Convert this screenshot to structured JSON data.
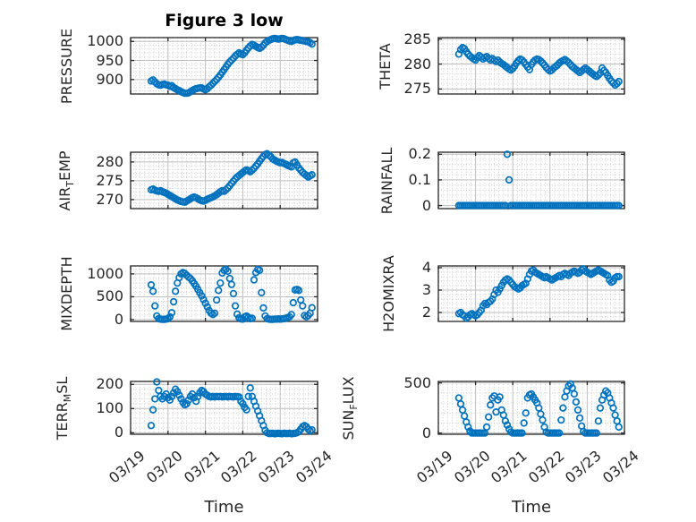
{
  "figure": {
    "title": "Figure 3 low",
    "xlabel": "Time",
    "xtick_labels": [
      "03/19",
      "03/20",
      "03/21",
      "03/22",
      "03/23",
      "03/24"
    ],
    "xlim_days": [
      0,
      5
    ],
    "marker": "o",
    "marker_color": "#0072BD",
    "axis_color": "#262626",
    "grid": "on",
    "minor_grid": "dotted"
  },
  "chart_data": [
    {
      "type": "scatter",
      "name": "PRESSURE",
      "ylabel": {
        "pre": "PRESSURE",
        "sub": "",
        "post": ""
      },
      "yticks": [
        900,
        950,
        1000
      ],
      "ylim": [
        862,
        1010
      ],
      "yminor": 10,
      "x_start_day": 0.55,
      "x_step_day": 0.05,
      "values": [
        896,
        899,
        894,
        889,
        886,
        885,
        887,
        888,
        886,
        885,
        882,
        884,
        879,
        876,
        873,
        871,
        868,
        866,
        864,
        864,
        865,
        868,
        871,
        874,
        876,
        877,
        878,
        878,
        875,
        873,
        876,
        881,
        885,
        890,
        895,
        900,
        906,
        912,
        919,
        926,
        933,
        940,
        946,
        951,
        956,
        962,
        966,
        970,
        967,
        965,
        970,
        977,
        983,
        988,
        992,
        990,
        987,
        984,
        982,
        985,
        990,
        996,
        1000,
        1003,
        1005,
        1007,
        1008,
        1007,
        1006,
        1007,
        1008,
        1007,
        1005,
        1003,
        1001,
        1000,
        1002,
        1004,
        1005,
        1004,
        1003,
        1002,
        1001,
        1000,
        999,
        997,
        993
      ]
    },
    {
      "type": "scatter",
      "name": "THETA",
      "ylabel": {
        "pre": "THETA",
        "sub": "",
        "post": ""
      },
      "yticks": [
        275,
        280,
        285
      ],
      "ylim": [
        274,
        285.3
      ],
      "yminor": 1,
      "x_start_day": 0.55,
      "x_step_day": 0.05,
      "values": [
        282.0,
        282.9,
        283.3,
        283.1,
        282.5,
        282.0,
        281.6,
        281.3,
        281.0,
        280.8,
        281.3,
        281.7,
        281.4,
        281.0,
        281.3,
        281.5,
        281.1,
        280.8,
        281.1,
        280.8,
        280.5,
        280.8,
        280.4,
        280.1,
        279.9,
        279.6,
        279.3,
        279.0,
        278.8,
        279.1,
        279.6,
        280.2,
        280.7,
        281.0,
        280.8,
        280.4,
        279.9,
        279.4,
        278.9,
        279.9,
        280.4,
        280.8,
        281.0,
        280.9,
        280.6,
        280.2,
        279.8,
        279.3,
        278.9,
        278.6,
        278.8,
        279.2,
        279.5,
        279.8,
        280.2,
        280.5,
        280.7,
        280.9,
        280.6,
        280.3,
        279.9,
        279.5,
        279.2,
        278.9,
        278.6,
        278.3,
        278.6,
        278.9,
        279.2,
        278.9,
        278.6,
        278.3,
        278.0,
        277.7,
        277.5,
        277.8,
        278.2,
        279.2,
        278.7,
        278.3,
        277.7,
        277.1,
        276.6,
        276.2,
        275.8,
        276.1,
        276.5
      ]
    },
    {
      "type": "scatter",
      "name": "AIR_TEMP",
      "ylabel": {
        "pre": "AIR",
        "sub": "T",
        "post": "EMP"
      },
      "yticks": [
        270,
        275,
        280
      ],
      "ylim": [
        267.6,
        282.6
      ],
      "yminor": 1,
      "x_start_day": 0.55,
      "x_step_day": 0.05,
      "values": [
        272.6,
        272.8,
        272.5,
        272.3,
        272.2,
        272.4,
        272.1,
        271.9,
        271.7,
        271.4,
        271.1,
        270.8,
        270.5,
        270.2,
        269.9,
        269.7,
        269.5,
        269.4,
        269.3,
        269.6,
        269.9,
        270.2,
        270.5,
        270.7,
        270.5,
        270.2,
        269.9,
        269.7,
        269.6,
        269.8,
        270.1,
        270.3,
        270.5,
        270.7,
        271.0,
        271.3,
        271.7,
        272.1,
        272.4,
        272.2,
        272.6,
        273.1,
        273.7,
        274.3,
        274.9,
        275.5,
        276.0,
        276.4,
        276.8,
        277.2,
        277.6,
        277.9,
        277.7,
        277.4,
        277.8,
        278.3,
        278.9,
        279.5,
        280.2,
        280.9,
        281.5,
        282.0,
        282.2,
        281.8,
        281.4,
        280.8,
        280.5,
        280.2,
        280.0,
        279.8,
        279.9,
        279.6,
        279.4,
        279.1,
        278.9,
        278.7,
        279.8,
        280.0,
        279.2,
        278.4,
        277.8,
        277.2,
        276.8,
        276.4,
        276.0,
        276.3,
        276.6
      ]
    },
    {
      "type": "scatter",
      "name": "RAINFALL",
      "ylabel": {
        "pre": "RAINFALL",
        "sub": "",
        "post": ""
      },
      "yticks": [
        0,
        0.1,
        0.2
      ],
      "ylim": [
        -0.012,
        0.208
      ],
      "yminor": 0.02,
      "x_start_day": 0.55,
      "x_step_day": 0.05,
      "values": [
        0,
        0,
        0,
        0,
        0,
        0,
        0,
        0,
        0,
        0,
        0,
        0,
        0,
        0,
        0,
        0,
        0,
        0,
        0,
        0,
        0,
        0,
        0,
        0,
        0,
        0,
        0.2,
        0.1,
        0,
        0,
        0,
        0,
        0,
        0,
        0,
        0,
        0,
        0,
        0,
        0,
        0,
        0,
        0,
        0,
        0,
        0,
        0,
        0,
        0,
        0,
        0,
        0,
        0,
        0,
        0,
        0,
        0,
        0,
        0,
        0,
        0,
        0,
        0,
        0,
        0,
        0,
        0,
        0,
        0,
        0,
        0,
        0,
        0,
        0,
        0,
        0,
        0,
        0,
        0,
        0,
        0,
        0,
        0,
        0,
        0,
        0,
        0
      ]
    },
    {
      "type": "scatter",
      "name": "MIXDEPTH",
      "ylabel": {
        "pre": "MIXDEPTH",
        "sub": "",
        "post": ""
      },
      "yticks": [
        0,
        500,
        1000
      ],
      "ylim": [
        -40,
        1175
      ],
      "yminor": 100,
      "x_start_day": 0.55,
      "x_step_day": 0.05,
      "values": [
        760,
        620,
        300,
        80,
        20,
        10,
        5,
        5,
        10,
        20,
        60,
        150,
        390,
        620,
        800,
        920,
        1000,
        1030,
        1010,
        970,
        930,
        900,
        850,
        790,
        730,
        660,
        590,
        520,
        440,
        360,
        280,
        200,
        140,
        110,
        140,
        430,
        640,
        800,
        1020,
        1080,
        1100,
        1060,
        900,
        770,
        570,
        300,
        120,
        40,
        15,
        10,
        60,
        80,
        50,
        20,
        30,
        870,
        1030,
        1100,
        1080,
        590,
        255,
        80,
        20,
        10,
        5,
        5,
        10,
        10,
        15,
        10,
        15,
        20,
        30,
        45,
        60,
        110,
        370,
        650,
        660,
        640,
        430,
        300,
        90,
        60,
        90,
        140,
        260
      ]
    },
    {
      "type": "scatter",
      "name": "H2OMIXRA",
      "ylabel": {
        "pre": "H2OMIXRA",
        "sub": "",
        "post": ""
      },
      "yticks": [
        2,
        3,
        4
      ],
      "ylim": [
        1.6,
        4.08
      ],
      "yminor": 0.2,
      "x_start_day": 0.55,
      "x_step_day": 0.05,
      "values": [
        1.95,
        2.0,
        1.9,
        1.85,
        1.75,
        1.8,
        1.9,
        1.95,
        1.9,
        1.85,
        1.9,
        2.0,
        2.1,
        2.3,
        2.4,
        2.35,
        2.45,
        2.5,
        2.6,
        2.8,
        3.0,
        2.9,
        3.05,
        3.2,
        3.35,
        3.45,
        3.5,
        3.45,
        3.35,
        3.25,
        3.15,
        3.1,
        3.05,
        3.1,
        3.2,
        3.25,
        3.3,
        3.5,
        3.7,
        3.85,
        3.9,
        3.8,
        3.75,
        3.7,
        3.65,
        3.6,
        3.55,
        3.6,
        3.55,
        3.5,
        3.45,
        3.5,
        3.55,
        3.6,
        3.65,
        3.6,
        3.7,
        3.75,
        3.7,
        3.65,
        3.75,
        3.8,
        3.85,
        3.8,
        3.75,
        3.8,
        3.9,
        3.95,
        3.85,
        3.8,
        3.75,
        3.7,
        3.75,
        3.8,
        3.85,
        3.9,
        3.85,
        3.8,
        3.75,
        3.7,
        3.65,
        3.45,
        3.35,
        3.4,
        3.55,
        3.6,
        3.6
      ]
    },
    {
      "type": "scatter",
      "name": "TERR_MSL",
      "ylabel": {
        "pre": "TERR",
        "sub": "M",
        "post": "SL"
      },
      "yticks": [
        0,
        100,
        200
      ],
      "ylim": [
        -6,
        212
      ],
      "yminor": 20,
      "x_start_day": 0.55,
      "x_step_day": 0.05,
      "values": [
        30,
        95,
        140,
        210,
        175,
        150,
        140,
        150,
        160,
        145,
        135,
        150,
        165,
        180,
        170,
        155,
        140,
        125,
        115,
        120,
        135,
        150,
        160,
        145,
        130,
        150,
        165,
        175,
        170,
        160,
        155,
        150,
        148,
        150,
        148,
        150,
        149,
        150,
        148,
        149,
        150,
        148,
        150,
        149,
        148,
        150,
        149,
        148,
        130,
        120,
        105,
        95,
        150,
        185,
        150,
        130,
        110,
        90,
        70,
        50,
        30,
        10,
        0,
        -3,
        -3,
        -2,
        -4,
        -3,
        -2,
        -3,
        -4,
        -2,
        -3,
        -3,
        -2,
        -4,
        -3,
        -2,
        0,
        5,
        15,
        25,
        30,
        25,
        15,
        8,
        12
      ]
    },
    {
      "type": "scatter",
      "name": "SUN_FLUX",
      "ylabel": {
        "pre": "SUN",
        "sub": "F",
        "post": "LUX"
      },
      "yticks": [
        0,
        500
      ],
      "ylim": [
        -12,
        515
      ],
      "yminor": 100,
      "x_start_day": 0.55,
      "x_step_day": 0.05,
      "values": [
        350,
        290,
        230,
        170,
        110,
        60,
        20,
        0,
        0,
        0,
        0,
        0,
        0,
        0,
        0,
        60,
        160,
        280,
        350,
        370,
        210,
        330,
        360,
        230,
        180,
        120,
        80,
        40,
        10,
        0,
        0,
        0,
        0,
        0,
        0,
        100,
        200,
        350,
        380,
        390,
        360,
        330,
        300,
        250,
        190,
        130,
        60,
        10,
        0,
        0,
        0,
        0,
        0,
        0,
        0,
        130,
        250,
        360,
        420,
        470,
        490,
        450,
        390,
        310,
        230,
        150,
        70,
        15,
        0,
        0,
        0,
        0,
        0,
        0,
        0,
        120,
        250,
        330,
        380,
        420,
        400,
        350,
        300,
        250,
        180,
        120,
        60
      ]
    }
  ]
}
